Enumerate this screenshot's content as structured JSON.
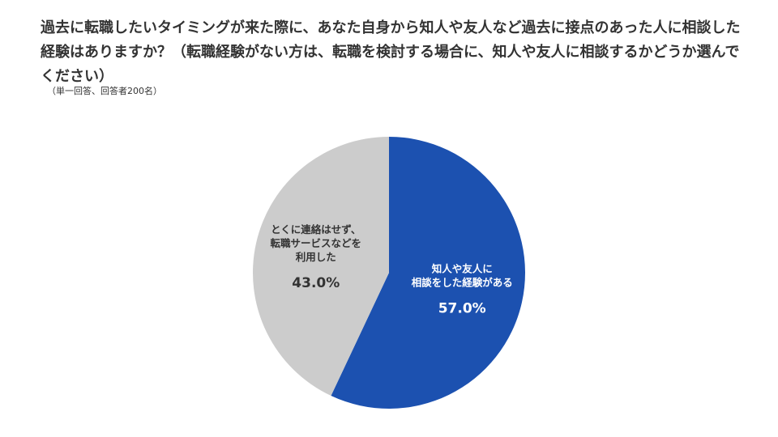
{
  "title": "過去に転職したいタイミングが来た際に、あなた自身から知人や友人など過去に接点のあった人に相談した経験はありますか？（転職経験がない方は、転職を検討する場合に、知人や友人に相談するかどうか選んでください）",
  "note": "（単一回答、回答者200名）",
  "chart_data": {
    "type": "pie",
    "title": "過去に転職したいタイミングが来た際に、あなた自身から知人や友人など過去に接点のあった人に相談した経験はありますか？（転職経験がない方は、転職を検討する場合に、知人や友人に相談するかどうか選んでください）",
    "start": "12 o'clock",
    "direction": "clockwise",
    "slices": [
      {
        "label_lines": [
          "知人や友人に",
          "相談をした経験がある"
        ],
        "value": 57.0,
        "value_label": "57.0%",
        "color": "#1c51b0",
        "text_color": "#ffffff"
      },
      {
        "label_lines": [
          "とくに連絡はせず、",
          "転職サービスなどを",
          "利用した"
        ],
        "value": 43.0,
        "value_label": "43.0%",
        "color": "#cccccc",
        "text_color": "#333333"
      }
    ]
  }
}
